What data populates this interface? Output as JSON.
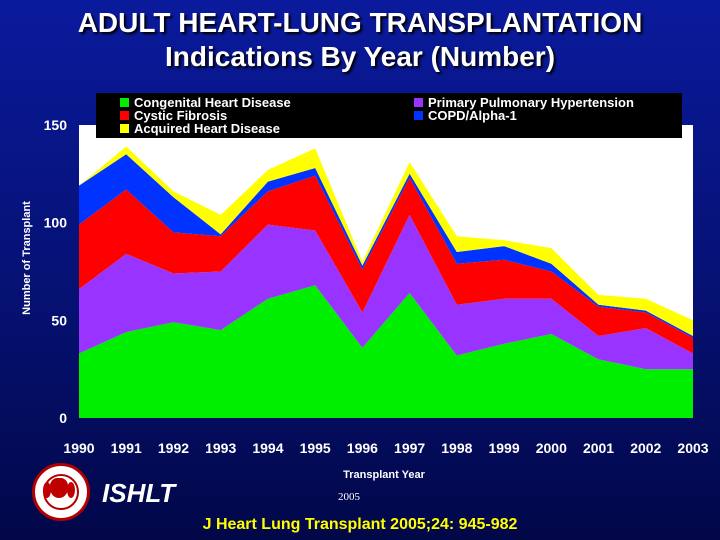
{
  "title_line1": "ADULT HEART-LUNG TRANSPLANTATION",
  "title_line2": "Indications By Year (Number)",
  "logo_text": "ISHLT",
  "year_note": "2005",
  "citation": "J Heart Lung Transplant 2005;24: 945-982",
  "chart_data": {
    "type": "area",
    "stacked": true,
    "title": "ADULT HEART-LUNG TRANSPLANTATION Indications By Year (Number)",
    "xlabel": "Transplant Year",
    "ylabel": "Number of Transplant",
    "ylim": [
      0,
      150
    ],
    "yticks": [
      0,
      50,
      100,
      150
    ],
    "grid": false,
    "legend_position": "top",
    "plot_background": "#ffffff",
    "x": [
      1990,
      1991,
      1992,
      1993,
      1994,
      1995,
      1996,
      1997,
      1998,
      1999,
      2000,
      2001,
      2002,
      2003
    ],
    "x_tick_labels": [
      "1990",
      "1991",
      "1992",
      "1993",
      "1994",
      "1995",
      "1996",
      "1997",
      "1998",
      "1999",
      "2000",
      "2001",
      "2002",
      "2003"
    ],
    "series": [
      {
        "name": "Congenital Heart Disease",
        "color": "#00ee00",
        "values": [
          33,
          44,
          49,
          45,
          61,
          68,
          36,
          64,
          32,
          38,
          43,
          30,
          25,
          25
        ]
      },
      {
        "name": "Primary Pulmonary Hypertension",
        "color": "#9933ff",
        "values": [
          33,
          40,
          25,
          30,
          38,
          28,
          18,
          40,
          26,
          23,
          18,
          12,
          21,
          8
        ]
      },
      {
        "name": "Cystic Fibrosis",
        "color": "#ff0000",
        "values": [
          33,
          33,
          21,
          18,
          17,
          28,
          22,
          19,
          21,
          20,
          14,
          15,
          8,
          8
        ]
      },
      {
        "name": "COPD/Alpha-1",
        "color": "#0033ff",
        "values": [
          20,
          18,
          18,
          1,
          5,
          4,
          2,
          2,
          6,
          7,
          4,
          1,
          1,
          1
        ]
      },
      {
        "name": "Acquired Heart Disease",
        "color": "#ffff00",
        "values": [
          0,
          4,
          3,
          10,
          6,
          10,
          2,
          6,
          8,
          3,
          8,
          5,
          6,
          8
        ]
      }
    ],
    "legend_order": [
      "Congenital Heart Disease",
      "Primary Pulmonary Hypertension",
      "Cystic Fibrosis",
      "COPD/Alpha-1",
      "Acquired Heart Disease"
    ]
  }
}
